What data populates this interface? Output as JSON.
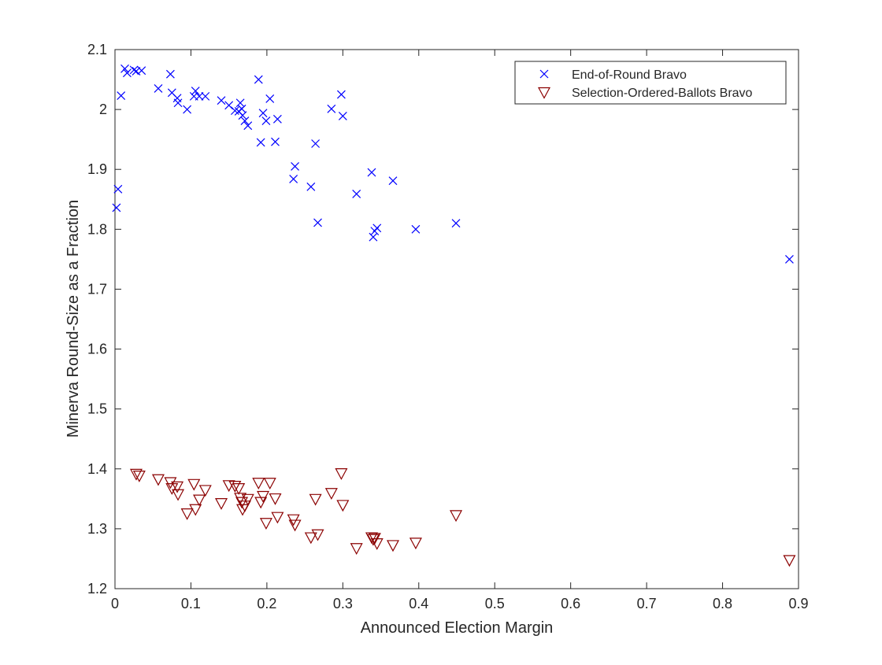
{
  "chart_data": {
    "type": "scatter",
    "title": "",
    "xlabel": "Announced Election Margin",
    "ylabel": "Minerva Round-Size as a Fraction",
    "xlim": [
      0,
      0.9
    ],
    "ylim": [
      1.2,
      2.1
    ],
    "xticks": [
      "0",
      "0.1",
      "0.2",
      "0.3",
      "0.4",
      "0.5",
      "0.6",
      "0.7",
      "0.8",
      "0.9"
    ],
    "yticks": [
      "1.2",
      "1.3",
      "1.4",
      "1.5",
      "1.6",
      "1.7",
      "1.8",
      "1.9",
      "2",
      "2.1"
    ],
    "grid": false,
    "legend_position": "top-right",
    "series": [
      {
        "name": "End-of-Round Bravo",
        "marker": "x",
        "color": "#0000ff",
        "points": [
          [
            0.002,
            1.836
          ],
          [
            0.004,
            1.867
          ],
          [
            0.008,
            2.023
          ],
          [
            0.013,
            2.068
          ],
          [
            0.016,
            2.061
          ],
          [
            0.025,
            2.066
          ],
          [
            0.028,
            2.064
          ],
          [
            0.035,
            2.065
          ],
          [
            0.057,
            2.035
          ],
          [
            0.073,
            2.059
          ],
          [
            0.075,
            2.028
          ],
          [
            0.082,
            2.019
          ],
          [
            0.083,
            2.011
          ],
          [
            0.095,
            2.0
          ],
          [
            0.104,
            2.022
          ],
          [
            0.106,
            2.031
          ],
          [
            0.111,
            2.022
          ],
          [
            0.119,
            2.022
          ],
          [
            0.14,
            2.015
          ],
          [
            0.15,
            2.007
          ],
          [
            0.158,
            1.998
          ],
          [
            0.163,
            1.997
          ],
          [
            0.165,
            2.011
          ],
          [
            0.167,
            2.001
          ],
          [
            0.168,
            1.99
          ],
          [
            0.171,
            1.981
          ],
          [
            0.175,
            1.973
          ],
          [
            0.189,
            2.05
          ],
          [
            0.192,
            1.945
          ],
          [
            0.195,
            1.994
          ],
          [
            0.199,
            1.981
          ],
          [
            0.204,
            2.018
          ],
          [
            0.211,
            1.946
          ],
          [
            0.214,
            1.984
          ],
          [
            0.235,
            1.884
          ],
          [
            0.237,
            1.905
          ],
          [
            0.258,
            1.871
          ],
          [
            0.264,
            1.943
          ],
          [
            0.267,
            1.811
          ],
          [
            0.285,
            2.001
          ],
          [
            0.298,
            2.025
          ],
          [
            0.3,
            1.989
          ],
          [
            0.318,
            1.859
          ],
          [
            0.338,
            1.895
          ],
          [
            0.34,
            1.787
          ],
          [
            0.342,
            1.797
          ],
          [
            0.345,
            1.802
          ],
          [
            0.366,
            1.881
          ],
          [
            0.396,
            1.8
          ],
          [
            0.449,
            1.81
          ],
          [
            0.888,
            1.75
          ]
        ]
      },
      {
        "name": "Selection-Ordered-Ballots Bravo",
        "marker": "triangle-down",
        "color": "#8b0000",
        "points": [
          [
            0.028,
            1.392
          ],
          [
            0.032,
            1.389
          ],
          [
            0.057,
            1.383
          ],
          [
            0.073,
            1.378
          ],
          [
            0.075,
            1.368
          ],
          [
            0.082,
            1.371
          ],
          [
            0.083,
            1.358
          ],
          [
            0.095,
            1.326
          ],
          [
            0.104,
            1.375
          ],
          [
            0.106,
            1.333
          ],
          [
            0.111,
            1.349
          ],
          [
            0.119,
            1.365
          ],
          [
            0.14,
            1.343
          ],
          [
            0.15,
            1.373
          ],
          [
            0.158,
            1.372
          ],
          [
            0.163,
            1.368
          ],
          [
            0.165,
            1.352
          ],
          [
            0.167,
            1.345
          ],
          [
            0.168,
            1.333
          ],
          [
            0.171,
            1.339
          ],
          [
            0.175,
            1.35
          ],
          [
            0.189,
            1.377
          ],
          [
            0.192,
            1.345
          ],
          [
            0.195,
            1.355
          ],
          [
            0.199,
            1.31
          ],
          [
            0.204,
            1.377
          ],
          [
            0.211,
            1.351
          ],
          [
            0.214,
            1.32
          ],
          [
            0.235,
            1.316
          ],
          [
            0.237,
            1.307
          ],
          [
            0.258,
            1.286
          ],
          [
            0.264,
            1.35
          ],
          [
            0.267,
            1.291
          ],
          [
            0.285,
            1.36
          ],
          [
            0.298,
            1.393
          ],
          [
            0.3,
            1.34
          ],
          [
            0.318,
            1.268
          ],
          [
            0.338,
            1.286
          ],
          [
            0.34,
            1.283
          ],
          [
            0.342,
            1.285
          ],
          [
            0.345,
            1.276
          ],
          [
            0.366,
            1.273
          ],
          [
            0.396,
            1.277
          ],
          [
            0.449,
            1.323
          ],
          [
            0.888,
            1.248
          ]
        ]
      }
    ]
  }
}
